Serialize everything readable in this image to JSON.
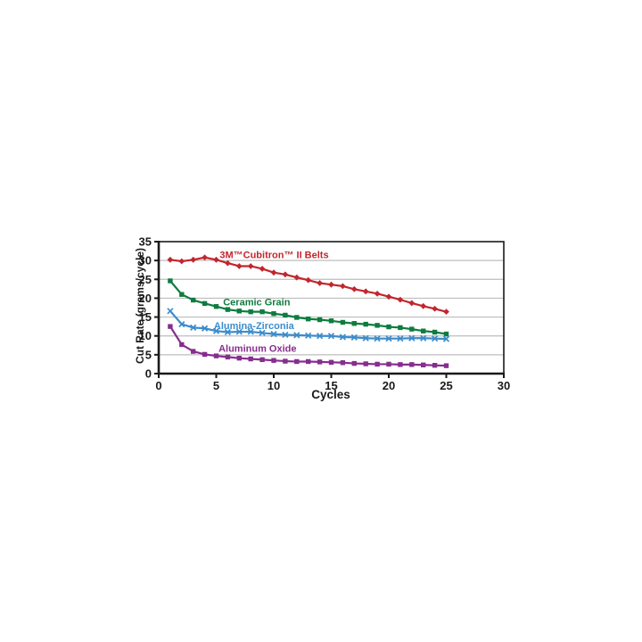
{
  "chart_data": {
    "type": "line",
    "title": "",
    "xlabel": "Cycles",
    "ylabel": "Cut Rate (grams/cycle)",
    "xlim": [
      0,
      30
    ],
    "ylim": [
      0,
      35
    ],
    "x_ticks": [
      0,
      5,
      10,
      15,
      20,
      25,
      30
    ],
    "y_ticks": [
      0,
      5,
      10,
      15,
      20,
      25,
      30,
      35
    ],
    "grid": "horizontal",
    "legend_position": "inline-labels",
    "background": "#ffffff",
    "axis_color": "#1a1a1a",
    "grid_color": "#bdbdbd",
    "x": [
      1,
      2,
      3,
      4,
      5,
      6,
      7,
      8,
      9,
      10,
      11,
      12,
      13,
      14,
      15,
      16,
      17,
      18,
      19,
      20,
      21,
      22,
      23,
      24,
      25
    ],
    "series": [
      {
        "name": "3M™Cubitron™ II Belts",
        "color": "#c2262e",
        "marker": "diamond",
        "label_pos": {
          "x": 5.3,
          "y": 30.6
        },
        "values": [
          30.2,
          29.8,
          30.2,
          30.8,
          30.2,
          29.3,
          28.5,
          28.5,
          27.8,
          26.8,
          26.3,
          25.5,
          24.8,
          24.0,
          23.6,
          23.2,
          22.4,
          21.8,
          21.2,
          20.4,
          19.6,
          18.7,
          17.9,
          17.2,
          16.4
        ]
      },
      {
        "name": "Ceramic Grain",
        "color": "#0e7c3f",
        "marker": "square",
        "label_pos": {
          "x": 5.6,
          "y": 18.1
        },
        "values": [
          24.6,
          21.0,
          19.5,
          18.6,
          17.8,
          17.0,
          16.6,
          16.4,
          16.4,
          15.9,
          15.5,
          14.9,
          14.5,
          14.3,
          14.0,
          13.6,
          13.3,
          13.1,
          12.8,
          12.4,
          12.2,
          11.8,
          11.3,
          11.0,
          10.5
        ]
      },
      {
        "name": "Alumina-Zirconia",
        "color": "#3b8ccc",
        "marker": "x",
        "label_pos": {
          "x": 4.8,
          "y": 11.8
        },
        "values": [
          16.6,
          13.1,
          12.2,
          12.0,
          11.3,
          11.0,
          11.1,
          11.1,
          10.8,
          10.5,
          10.3,
          10.2,
          10.1,
          10.0,
          10.0,
          9.7,
          9.6,
          9.4,
          9.3,
          9.3,
          9.3,
          9.4,
          9.4,
          9.3,
          9.2
        ]
      },
      {
        "name": "Aluminum Oxide",
        "color": "#872d8f",
        "marker": "square",
        "label_pos": {
          "x": 5.2,
          "y": 5.8
        },
        "values": [
          12.5,
          7.7,
          5.9,
          5.1,
          4.7,
          4.4,
          4.1,
          3.9,
          3.7,
          3.5,
          3.3,
          3.2,
          3.2,
          3.1,
          3.0,
          2.9,
          2.7,
          2.6,
          2.5,
          2.5,
          2.4,
          2.4,
          2.3,
          2.2,
          2.1
        ]
      }
    ]
  }
}
